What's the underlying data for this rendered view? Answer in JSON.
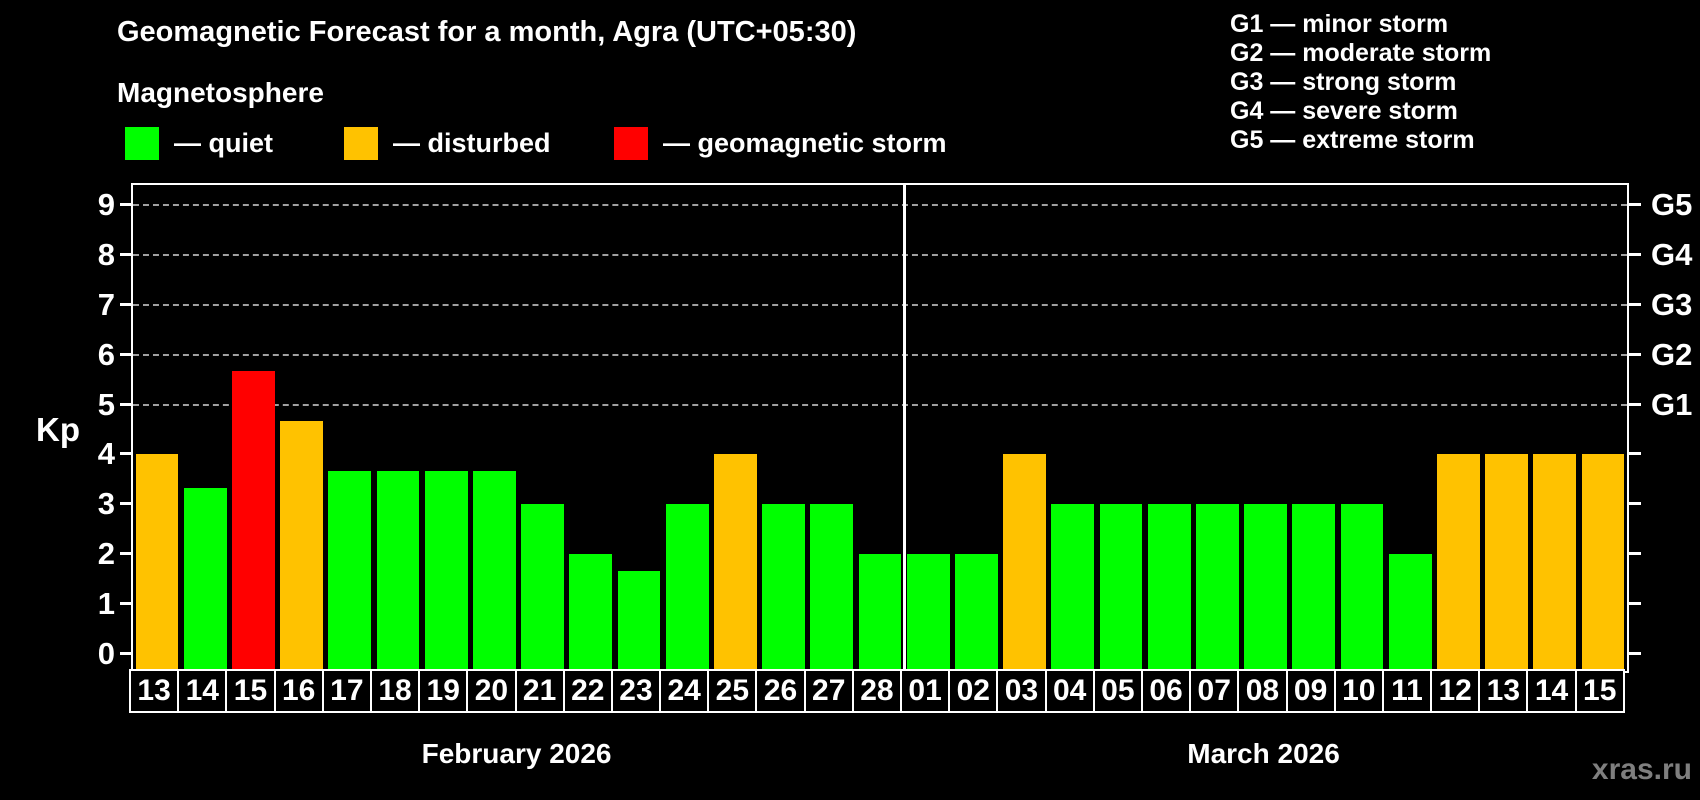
{
  "header": {
    "title": "Geomagnetic Forecast for a month, Agra (UTC+05:30)",
    "subtitle": "Magnetosphere"
  },
  "legend": [
    {
      "key": "quiet",
      "label": "— quiet"
    },
    {
      "key": "disturbed",
      "label": "— disturbed"
    },
    {
      "key": "storm",
      "label": "— geomagnetic storm"
    }
  ],
  "g_legend": [
    "G1 — minor storm",
    "G2 — moderate storm",
    "G3 — strong storm",
    "G4 — severe storm",
    "G5 — extreme storm"
  ],
  "colors": {
    "quiet": "#00ff00",
    "disturbed": "#ffc200",
    "storm": "#ff0000",
    "grid": "#a0a0a0",
    "axis": "#ffffff",
    "watermark": "#7f7f7f"
  },
  "watermark": "xras.ru",
  "chart_data": {
    "type": "bar",
    "title": "Geomagnetic Forecast for a month, Agra (UTC+05:30)",
    "ylabel": "Kp",
    "ylim": [
      0,
      9
    ],
    "grid": "dashed horizontal at Kp 5-9 (G1-G5 levels)",
    "y_ticks": [
      0,
      1,
      2,
      3,
      4,
      5,
      6,
      7,
      8,
      9
    ],
    "gridlines_at_kp": [
      5,
      6,
      7,
      8,
      9
    ],
    "right_axis_labels": [
      {
        "kp": 5,
        "label": "G1"
      },
      {
        "kp": 6,
        "label": "G2"
      },
      {
        "kp": 7,
        "label": "G3"
      },
      {
        "kp": 8,
        "label": "G4"
      },
      {
        "kp": 9,
        "label": "G5"
      }
    ],
    "months": [
      {
        "label": "February 2026",
        "start_index": 0,
        "days": 16
      },
      {
        "label": "March 2026",
        "start_index": 16,
        "days": 15
      }
    ],
    "bars": [
      {
        "day": "13",
        "kp": 4.0,
        "status": "disturbed"
      },
      {
        "day": "14",
        "kp": 3.33,
        "status": "quiet"
      },
      {
        "day": "15",
        "kp": 5.67,
        "status": "storm"
      },
      {
        "day": "16",
        "kp": 4.67,
        "status": "disturbed"
      },
      {
        "day": "17",
        "kp": 3.67,
        "status": "quiet"
      },
      {
        "day": "18",
        "kp": 3.67,
        "status": "quiet"
      },
      {
        "day": "19",
        "kp": 3.67,
        "status": "quiet"
      },
      {
        "day": "20",
        "kp": 3.67,
        "status": "quiet"
      },
      {
        "day": "21",
        "kp": 3.0,
        "status": "quiet"
      },
      {
        "day": "22",
        "kp": 2.0,
        "status": "quiet"
      },
      {
        "day": "23",
        "kp": 1.67,
        "status": "quiet"
      },
      {
        "day": "24",
        "kp": 3.0,
        "status": "quiet"
      },
      {
        "day": "25",
        "kp": 4.0,
        "status": "disturbed"
      },
      {
        "day": "26",
        "kp": 3.0,
        "status": "quiet"
      },
      {
        "day": "27",
        "kp": 3.0,
        "status": "quiet"
      },
      {
        "day": "28",
        "kp": 2.0,
        "status": "quiet"
      },
      {
        "day": "01",
        "kp": 2.0,
        "status": "quiet"
      },
      {
        "day": "02",
        "kp": 2.0,
        "status": "quiet"
      },
      {
        "day": "03",
        "kp": 4.0,
        "status": "disturbed"
      },
      {
        "day": "04",
        "kp": 3.0,
        "status": "quiet"
      },
      {
        "day": "05",
        "kp": 3.0,
        "status": "quiet"
      },
      {
        "day": "06",
        "kp": 3.0,
        "status": "quiet"
      },
      {
        "day": "07",
        "kp": 3.0,
        "status": "quiet"
      },
      {
        "day": "08",
        "kp": 3.0,
        "status": "quiet"
      },
      {
        "day": "09",
        "kp": 3.0,
        "status": "quiet"
      },
      {
        "day": "10",
        "kp": 3.0,
        "status": "quiet"
      },
      {
        "day": "11",
        "kp": 2.0,
        "status": "quiet"
      },
      {
        "day": "12",
        "kp": 4.0,
        "status": "disturbed"
      },
      {
        "day": "13",
        "kp": 4.0,
        "status": "disturbed"
      },
      {
        "day": "14",
        "kp": 4.0,
        "status": "disturbed"
      },
      {
        "day": "15",
        "kp": 4.0,
        "status": "disturbed"
      }
    ]
  }
}
